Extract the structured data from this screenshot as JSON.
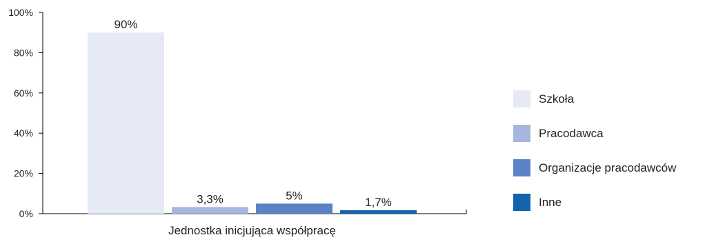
{
  "chart_data": {
    "type": "bar",
    "title": "",
    "xlabel": "",
    "ylabel": "",
    "categories": [
      "Jednostka inicjująca współpracę"
    ],
    "series": [
      {
        "name": "Szkoła",
        "values": [
          90
        ],
        "label": "90%",
        "color": "#e6e9f6"
      },
      {
        "name": "Pracodawca",
        "values": [
          3.3
        ],
        "label": "3,3%",
        "color": "#a8b5df"
      },
      {
        "name": "Organizacje pracodawców",
        "values": [
          5
        ],
        "label": "5%",
        "color": "#5b82c5"
      },
      {
        "name": "Inne",
        "values": [
          1.7
        ],
        "label": "1,7%",
        "color": "#1463ad"
      }
    ],
    "ylim": [
      0,
      100
    ],
    "yticks": [
      0,
      20,
      40,
      60,
      80,
      100
    ],
    "ytick_labels": [
      "0%",
      "20%",
      "40%",
      "60%",
      "80%",
      "100%"
    ],
    "grid": false,
    "legend_position": "right"
  }
}
